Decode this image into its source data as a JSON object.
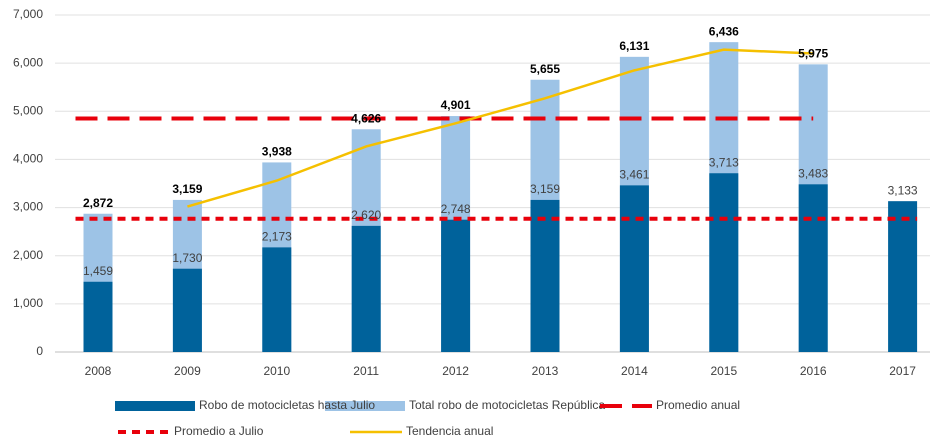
{
  "chart_data": {
    "type": "bar",
    "categories": [
      "2008",
      "2009",
      "2010",
      "2011",
      "2012",
      "2013",
      "2014",
      "2015",
      "2016",
      "2017"
    ],
    "series": [
      {
        "name": "Total robo de motocicletas República",
        "type": "bar",
        "color": "#9dc3e6",
        "values": [
          2872,
          3159,
          3938,
          4626,
          4901,
          5655,
          6131,
          6436,
          5975,
          null
        ],
        "value_labels": [
          "2,872",
          "3,159",
          "3,938",
          "4,626",
          "4,901",
          "5,655",
          "6,131",
          "6,436",
          "5,975",
          null
        ]
      },
      {
        "name": "Robo de motocicletas hasta Julio",
        "type": "bar",
        "color": "#00629b",
        "values": [
          1459,
          1730,
          2173,
          2620,
          2748,
          3159,
          3461,
          3713,
          3483,
          3133
        ],
        "value_labels": [
          "1,459",
          "1,730",
          "2,173",
          "2,620",
          "2,748",
          "3,159",
          "3,461",
          "3,713",
          "3,483",
          "3,133"
        ]
      },
      {
        "name": "Promedio anual",
        "type": "line",
        "dash": "long",
        "color": "#e8000b",
        "values": [
          4850,
          4850,
          4850,
          4850,
          4850,
          4850,
          4850,
          4850,
          4850,
          null
        ]
      },
      {
        "name": "Promedio a Julio",
        "type": "line",
        "dash": "short",
        "color": "#e8000b",
        "values": [
          2768,
          2768,
          2768,
          2768,
          2768,
          2768,
          2768,
          2768,
          2768,
          2768
        ]
      },
      {
        "name": "Tendencia anual",
        "type": "line",
        "color": "#f5c000",
        "values": [
          null,
          3020,
          3560,
          4270,
          4750,
          5270,
          5850,
          6280,
          6200,
          null
        ]
      }
    ],
    "ylim": [
      0,
      7000
    ],
    "yticks": [
      0,
      {
        "value": 1000,
        "label": "1,000"
      },
      {
        "value": 2000,
        "label": "2,000"
      },
      {
        "value": 3000,
        "label": "3,000"
      },
      {
        "value": 4000,
        "label": "4,000"
      },
      {
        "value": 5000,
        "label": "5,000"
      },
      {
        "value": 6000,
        "label": "6,000"
      },
      {
        "value": 7000,
        "label": "7,000"
      }
    ],
    "grid": true
  }
}
